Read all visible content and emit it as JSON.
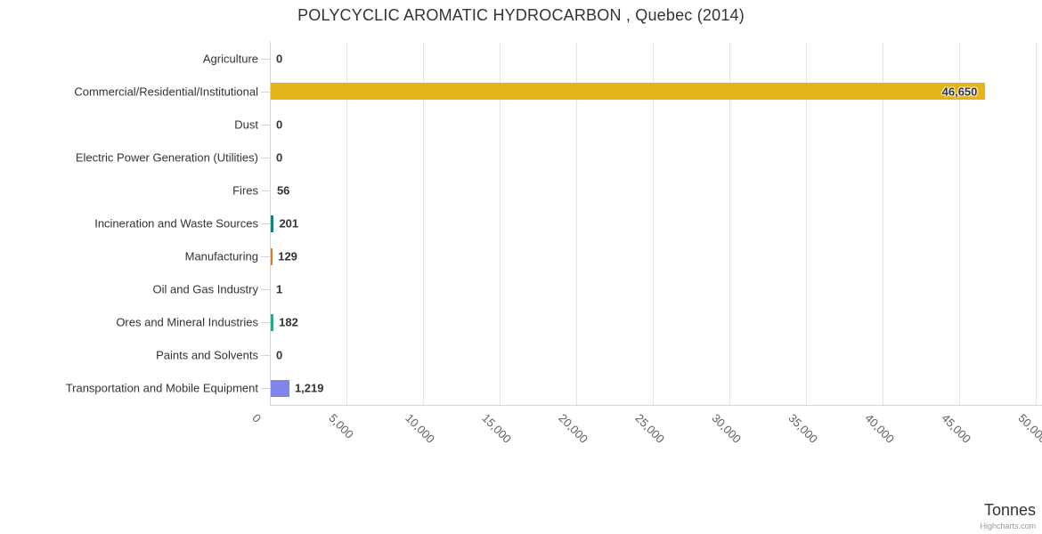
{
  "chart_data": {
    "type": "bar",
    "orientation": "horizontal",
    "title": "POLYCYCLIC AROMATIC HYDROCARBON , Quebec (2014)",
    "categories": [
      "Agriculture",
      "Commercial/Residential/Institutional",
      "Dust",
      "Electric Power Generation (Utilities)",
      "Fires",
      "Incineration and Waste Sources",
      "Manufacturing",
      "Oil and Gas Industry",
      "Ores and Mineral Industries",
      "Paints and Solvents",
      "Transportation and Mobile Equipment"
    ],
    "values": [
      0,
      46650,
      0,
      0,
      56,
      201,
      129,
      1,
      182,
      0,
      1219
    ],
    "value_labels": [
      "0",
      "46,650",
      "0",
      "0",
      "56",
      "201",
      "129",
      "1",
      "182",
      "0",
      "1,219"
    ],
    "point_colors": [
      null,
      "#e5b419",
      null,
      null,
      null,
      "#177f7d",
      "#dd7d26",
      null,
      "#25a98a",
      null,
      "#8085e9"
    ],
    "xlabel": "Tonnes",
    "x_ticks": [
      "0",
      "5,000",
      "10,000",
      "15,000",
      "20,000",
      "25,000",
      "30,000",
      "35,000",
      "40,000",
      "45,000",
      "50,000"
    ],
    "xlim": [
      0,
      50000
    ],
    "grid": "vertical-only",
    "legend": "none",
    "credit": "Highcharts.com",
    "colors": {
      "grid": "#e6e6e6",
      "axis_line": "#ccd6eb",
      "title_text": "#333333",
      "tick_label": "#606060",
      "credit_text": "#999999"
    }
  }
}
